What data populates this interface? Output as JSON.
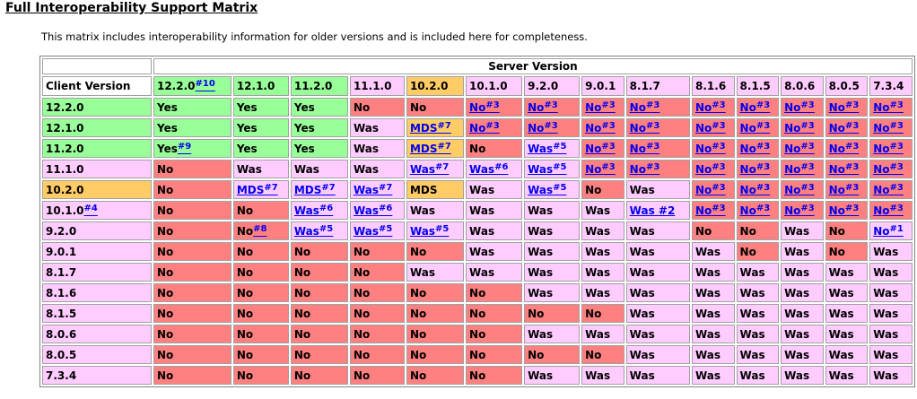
{
  "title": "Full Interoperability Support Matrix",
  "intro": "This matrix includes interoperability information for older versions and is included here for completeness.",
  "colors": {
    "green": "#99ff99",
    "orange": "#ffcc66",
    "pink": "#ffccff",
    "red": "#ff8080",
    "link": "#0000ee"
  },
  "server_header": "Server Version",
  "client_header": "Client Version",
  "server_versions": [
    {
      "label": "12.2.0",
      "fn": "#10",
      "color": "g"
    },
    {
      "label": "12.1.0",
      "fn": "",
      "color": "g"
    },
    {
      "label": "11.2.0",
      "fn": "",
      "color": "g"
    },
    {
      "label": "11.1.0",
      "fn": "",
      "color": "p"
    },
    {
      "label": "10.2.0",
      "fn": "",
      "color": "o"
    },
    {
      "label": "10.1.0",
      "fn": "",
      "color": "p"
    },
    {
      "label": "9.2.0",
      "fn": "",
      "color": "p"
    },
    {
      "label": "9.0.1",
      "fn": "",
      "color": "p"
    },
    {
      "label": "8.1.7",
      "fn": "",
      "color": "p"
    },
    {
      "label": "8.1.6",
      "fn": "",
      "color": "p"
    },
    {
      "label": "8.1.5",
      "fn": "",
      "color": "p"
    },
    {
      "label": "8.0.6",
      "fn": "",
      "color": "p"
    },
    {
      "label": "8.0.5",
      "fn": "",
      "color": "p"
    },
    {
      "label": "7.3.4",
      "fn": "",
      "color": "p"
    }
  ],
  "rows": [
    {
      "client": "12.2.0",
      "client_fn": "",
      "client_color": "g",
      "cells": [
        {
          "t": "Yes",
          "c": "g"
        },
        {
          "t": "Yes",
          "c": "g"
        },
        {
          "t": "Yes",
          "c": "g"
        },
        {
          "t": "No",
          "c": "r"
        },
        {
          "t": "No",
          "c": "r"
        },
        {
          "t": "No",
          "fn": "#3",
          "c": "r",
          "link": true
        },
        {
          "t": "No",
          "fn": "#3",
          "c": "r",
          "link": true
        },
        {
          "t": "No",
          "fn": "#3",
          "c": "r",
          "link": true
        },
        {
          "t": "No",
          "fn": "#3",
          "c": "r",
          "link": true
        },
        {
          "t": "No",
          "fn": "#3",
          "c": "r",
          "link": true
        },
        {
          "t": "No",
          "fn": "#3",
          "c": "r",
          "link": true
        },
        {
          "t": "No",
          "fn": "#3",
          "c": "r",
          "link": true
        },
        {
          "t": "No",
          "fn": "#3",
          "c": "r",
          "link": true
        },
        {
          "t": "No",
          "fn": "#3",
          "c": "r",
          "link": true
        }
      ]
    },
    {
      "client": "12.1.0",
      "client_fn": "",
      "client_color": "g",
      "cells": [
        {
          "t": "Yes",
          "c": "g"
        },
        {
          "t": "Yes",
          "c": "g"
        },
        {
          "t": "Yes",
          "c": "g"
        },
        {
          "t": "Was",
          "c": "p"
        },
        {
          "t": "MDS",
          "fn": "#7",
          "c": "o",
          "link": true
        },
        {
          "t": "No",
          "fn": "#3",
          "c": "r",
          "link": true
        },
        {
          "t": "No",
          "fn": "#3",
          "c": "r",
          "link": true
        },
        {
          "t": "No",
          "fn": "#3",
          "c": "r",
          "link": true
        },
        {
          "t": "No",
          "fn": "#3",
          "c": "r",
          "link": true
        },
        {
          "t": "No",
          "fn": "#3",
          "c": "r",
          "link": true
        },
        {
          "t": "No",
          "fn": "#3",
          "c": "r",
          "link": true
        },
        {
          "t": "No",
          "fn": "#3",
          "c": "r",
          "link": true
        },
        {
          "t": "No",
          "fn": "#3",
          "c": "r",
          "link": true
        },
        {
          "t": "No",
          "fn": "#3",
          "c": "r",
          "link": true
        }
      ]
    },
    {
      "client": "11.2.0",
      "client_fn": "",
      "client_color": "g",
      "cells": [
        {
          "t": "Yes",
          "fn": "#9",
          "c": "g",
          "link": false
        },
        {
          "t": "Yes",
          "c": "g"
        },
        {
          "t": "Yes",
          "c": "g"
        },
        {
          "t": "Was",
          "c": "p"
        },
        {
          "t": "MDS",
          "fn": "#7",
          "c": "o",
          "link": true
        },
        {
          "t": "No",
          "c": "r"
        },
        {
          "t": "Was",
          "fn": "#5",
          "c": "p",
          "link": true
        },
        {
          "t": "No",
          "fn": "#3",
          "c": "r",
          "link": true
        },
        {
          "t": "No",
          "fn": "#3",
          "c": "r",
          "link": true
        },
        {
          "t": "No",
          "fn": "#3",
          "c": "r",
          "link": true
        },
        {
          "t": "No",
          "fn": "#3",
          "c": "r",
          "link": true
        },
        {
          "t": "No",
          "fn": "#3",
          "c": "r",
          "link": true
        },
        {
          "t": "No",
          "fn": "#3",
          "c": "r",
          "link": true
        },
        {
          "t": "No",
          "fn": "#3",
          "c": "r",
          "link": true
        }
      ]
    },
    {
      "client": "11.1.0",
      "client_fn": "",
      "client_color": "p",
      "cells": [
        {
          "t": "No",
          "c": "r"
        },
        {
          "t": "Was",
          "c": "p"
        },
        {
          "t": "Was",
          "c": "p"
        },
        {
          "t": "Was",
          "c": "p"
        },
        {
          "t": "Was",
          "fn": "#7",
          "c": "p",
          "link": true
        },
        {
          "t": "Was",
          "fn": "#6",
          "c": "p",
          "link": true
        },
        {
          "t": "Was",
          "fn": "#5",
          "c": "p",
          "link": true
        },
        {
          "t": "No",
          "fn": "#3",
          "c": "r",
          "link": true
        },
        {
          "t": "No",
          "fn": "#3",
          "c": "r",
          "link": true
        },
        {
          "t": "No",
          "fn": "#3",
          "c": "r",
          "link": true
        },
        {
          "t": "No",
          "fn": "#3",
          "c": "r",
          "link": true
        },
        {
          "t": "No",
          "fn": "#3",
          "c": "r",
          "link": true
        },
        {
          "t": "No",
          "fn": "#3",
          "c": "r",
          "link": true
        },
        {
          "t": "No",
          "fn": "#3",
          "c": "r",
          "link": true
        }
      ]
    },
    {
      "client": "10.2.0",
      "client_fn": "",
      "client_color": "o",
      "cells": [
        {
          "t": "No",
          "c": "r"
        },
        {
          "t": "MDS",
          "fn": "#7",
          "c": "p",
          "link": true
        },
        {
          "t": "MDS",
          "fn": "#7",
          "c": "p",
          "link": true
        },
        {
          "t": "Was",
          "fn": "#7",
          "c": "p",
          "link": true
        },
        {
          "t": "MDS",
          "c": "o"
        },
        {
          "t": "Was",
          "c": "p"
        },
        {
          "t": "Was",
          "fn": "#5",
          "c": "p",
          "link": true
        },
        {
          "t": "No",
          "c": "r"
        },
        {
          "t": "Was",
          "c": "p"
        },
        {
          "t": "No",
          "fn": "#3",
          "c": "r",
          "link": true
        },
        {
          "t": "No",
          "fn": "#3",
          "c": "r",
          "link": true
        },
        {
          "t": "No",
          "fn": "#3",
          "c": "r",
          "link": true
        },
        {
          "t": "No",
          "fn": "#3",
          "c": "r",
          "link": true
        },
        {
          "t": "No",
          "fn": "#3",
          "c": "r",
          "link": true
        }
      ]
    },
    {
      "client": "10.1.0",
      "client_fn": "#4",
      "client_color": "p",
      "cells": [
        {
          "t": "No",
          "c": "r"
        },
        {
          "t": "No",
          "c": "r"
        },
        {
          "t": "Was",
          "fn": "#6",
          "c": "p",
          "link": true
        },
        {
          "t": "Was",
          "fn": "#6",
          "c": "p",
          "link": true
        },
        {
          "t": "Was",
          "c": "p"
        },
        {
          "t": "Was",
          "c": "p"
        },
        {
          "t": "Was",
          "c": "p"
        },
        {
          "t": "Was",
          "c": "p"
        },
        {
          "t": "Was #2",
          "c": "p",
          "link": true
        },
        {
          "t": "No",
          "fn": "#3",
          "c": "r",
          "link": true
        },
        {
          "t": "No",
          "fn": "#3",
          "c": "r",
          "link": true
        },
        {
          "t": "No",
          "fn": "#3",
          "c": "r",
          "link": true
        },
        {
          "t": "No",
          "fn": "#3",
          "c": "r",
          "link": true
        },
        {
          "t": "No",
          "fn": "#3",
          "c": "r",
          "link": true
        }
      ]
    },
    {
      "client": "9.2.0",
      "client_fn": "",
      "client_color": "p",
      "cells": [
        {
          "t": "No",
          "c": "r"
        },
        {
          "t": "No",
          "fn": "#8",
          "c": "r",
          "link": false
        },
        {
          "t": "Was",
          "fn": "#5",
          "c": "p",
          "link": true
        },
        {
          "t": "Was",
          "fn": "#5",
          "c": "p",
          "link": true
        },
        {
          "t": "Was",
          "fn": "#5",
          "c": "p",
          "link": true
        },
        {
          "t": "Was",
          "c": "p"
        },
        {
          "t": "Was",
          "c": "p"
        },
        {
          "t": "Was",
          "c": "p"
        },
        {
          "t": "Was",
          "c": "p"
        },
        {
          "t": "No",
          "c": "r"
        },
        {
          "t": "No",
          "c": "r"
        },
        {
          "t": "Was",
          "c": "p"
        },
        {
          "t": "No",
          "c": "r"
        },
        {
          "t": "No",
          "fn": "#1",
          "c": "p",
          "link": true
        }
      ]
    },
    {
      "client": "9.0.1",
      "client_fn": "",
      "client_color": "p",
      "cells": [
        {
          "t": "No",
          "c": "r"
        },
        {
          "t": "No",
          "c": "r"
        },
        {
          "t": "No",
          "c": "r"
        },
        {
          "t": "No",
          "c": "r"
        },
        {
          "t": "No",
          "c": "r"
        },
        {
          "t": "Was",
          "c": "p"
        },
        {
          "t": "Was",
          "c": "p"
        },
        {
          "t": "Was",
          "c": "p"
        },
        {
          "t": "Was",
          "c": "p"
        },
        {
          "t": "Was",
          "c": "p"
        },
        {
          "t": "No",
          "c": "r"
        },
        {
          "t": "Was",
          "c": "p"
        },
        {
          "t": "No",
          "c": "r"
        },
        {
          "t": "Was",
          "c": "p"
        }
      ]
    },
    {
      "client": "8.1.7",
      "client_fn": "",
      "client_color": "p",
      "cells": [
        {
          "t": "No",
          "c": "r"
        },
        {
          "t": "No",
          "c": "r"
        },
        {
          "t": "No",
          "c": "r"
        },
        {
          "t": "No",
          "c": "r"
        },
        {
          "t": "Was",
          "c": "p"
        },
        {
          "t": "Was",
          "c": "p"
        },
        {
          "t": "Was",
          "c": "p"
        },
        {
          "t": "Was",
          "c": "p"
        },
        {
          "t": "Was",
          "c": "p"
        },
        {
          "t": "Was",
          "c": "p"
        },
        {
          "t": "Was",
          "c": "p"
        },
        {
          "t": "Was",
          "c": "p"
        },
        {
          "t": "Was",
          "c": "p"
        },
        {
          "t": "Was",
          "c": "p"
        }
      ]
    },
    {
      "client": "8.1.6",
      "client_fn": "",
      "client_color": "p",
      "cells": [
        {
          "t": "No",
          "c": "r"
        },
        {
          "t": "No",
          "c": "r"
        },
        {
          "t": "No",
          "c": "r"
        },
        {
          "t": "No",
          "c": "r"
        },
        {
          "t": "No",
          "c": "r"
        },
        {
          "t": "No",
          "c": "r"
        },
        {
          "t": "Was",
          "c": "p"
        },
        {
          "t": "Was",
          "c": "p"
        },
        {
          "t": "Was",
          "c": "p"
        },
        {
          "t": "Was",
          "c": "p"
        },
        {
          "t": "Was",
          "c": "p"
        },
        {
          "t": "Was",
          "c": "p"
        },
        {
          "t": "Was",
          "c": "p"
        },
        {
          "t": "Was",
          "c": "p"
        }
      ]
    },
    {
      "client": "8.1.5",
      "client_fn": "",
      "client_color": "p",
      "cells": [
        {
          "t": "No",
          "c": "r"
        },
        {
          "t": "No",
          "c": "r"
        },
        {
          "t": "No",
          "c": "r"
        },
        {
          "t": "No",
          "c": "r"
        },
        {
          "t": "No",
          "c": "r"
        },
        {
          "t": "No",
          "c": "r"
        },
        {
          "t": "No",
          "c": "r"
        },
        {
          "t": "No",
          "c": "r"
        },
        {
          "t": "Was",
          "c": "p"
        },
        {
          "t": "Was",
          "c": "p"
        },
        {
          "t": "Was",
          "c": "p"
        },
        {
          "t": "Was",
          "c": "p"
        },
        {
          "t": "Was",
          "c": "p"
        },
        {
          "t": "Was",
          "c": "p"
        }
      ]
    },
    {
      "client": "8.0.6",
      "client_fn": "",
      "client_color": "p",
      "cells": [
        {
          "t": "No",
          "c": "r"
        },
        {
          "t": "No",
          "c": "r"
        },
        {
          "t": "No",
          "c": "r"
        },
        {
          "t": "No",
          "c": "r"
        },
        {
          "t": "No",
          "c": "r"
        },
        {
          "t": "No",
          "c": "r"
        },
        {
          "t": "Was",
          "c": "p"
        },
        {
          "t": "Was",
          "c": "p"
        },
        {
          "t": "Was",
          "c": "p"
        },
        {
          "t": "Was",
          "c": "p"
        },
        {
          "t": "Was",
          "c": "p"
        },
        {
          "t": "Was",
          "c": "p"
        },
        {
          "t": "Was",
          "c": "p"
        },
        {
          "t": "Was",
          "c": "p"
        }
      ]
    },
    {
      "client": "8.0.5",
      "client_fn": "",
      "client_color": "p",
      "cells": [
        {
          "t": "No",
          "c": "r"
        },
        {
          "t": "No",
          "c": "r"
        },
        {
          "t": "No",
          "c": "r"
        },
        {
          "t": "No",
          "c": "r"
        },
        {
          "t": "No",
          "c": "r"
        },
        {
          "t": "No",
          "c": "r"
        },
        {
          "t": "No",
          "c": "r"
        },
        {
          "t": "No",
          "c": "r"
        },
        {
          "t": "Was",
          "c": "p"
        },
        {
          "t": "Was",
          "c": "p"
        },
        {
          "t": "Was",
          "c": "p"
        },
        {
          "t": "Was",
          "c": "p"
        },
        {
          "t": "Was",
          "c": "p"
        },
        {
          "t": "Was",
          "c": "p"
        }
      ]
    },
    {
      "client": "7.3.4",
      "client_fn": "",
      "client_color": "p",
      "cells": [
        {
          "t": "No",
          "c": "r"
        },
        {
          "t": "No",
          "c": "r"
        },
        {
          "t": "No",
          "c": "r"
        },
        {
          "t": "No",
          "c": "r"
        },
        {
          "t": "No",
          "c": "r"
        },
        {
          "t": "No",
          "c": "r"
        },
        {
          "t": "Was",
          "c": "p"
        },
        {
          "t": "Was",
          "c": "p"
        },
        {
          "t": "Was",
          "c": "p"
        },
        {
          "t": "Was",
          "c": "p"
        },
        {
          "t": "Was",
          "c": "p"
        },
        {
          "t": "Was",
          "c": "p"
        },
        {
          "t": "Was",
          "c": "p"
        },
        {
          "t": "Was",
          "c": "p"
        }
      ]
    }
  ]
}
